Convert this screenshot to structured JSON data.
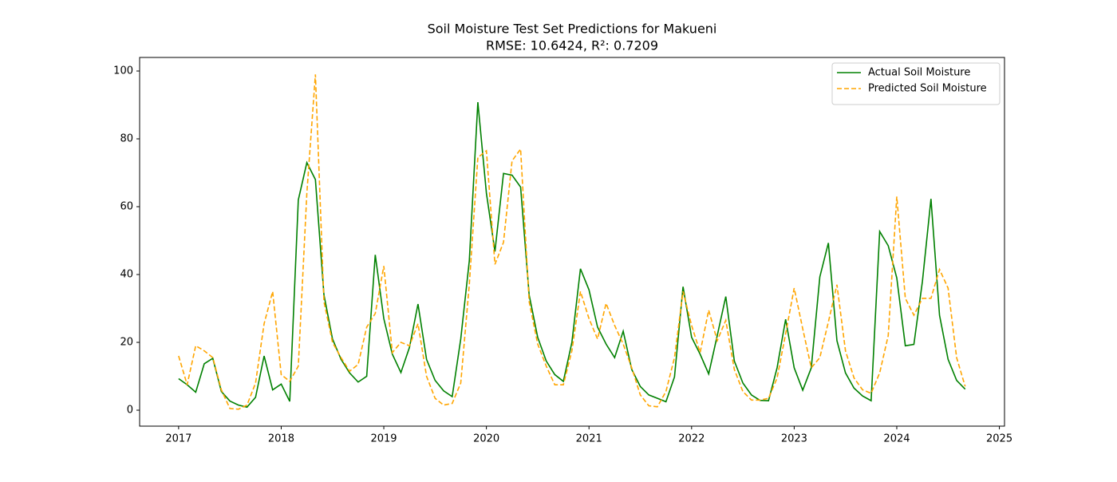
{
  "chart_data": {
    "type": "line",
    "title": "Soil Moisture Test Set Predictions for Makueni",
    "subtitle": "RMSE: 10.6424, R²: 0.7209",
    "x": [
      2017,
      2017.0833,
      2017.1667,
      2017.25,
      2017.3333,
      2017.4167,
      2017.5,
      2017.5833,
      2017.6667,
      2017.75,
      2017.8333,
      2017.9167,
      2018,
      2018.0833,
      2018.1667,
      2018.25,
      2018.3333,
      2018.4167,
      2018.5,
      2018.5833,
      2018.6667,
      2018.75,
      2018.8333,
      2018.9167,
      2019,
      2019.0833,
      2019.1667,
      2019.25,
      2019.3333,
      2019.4167,
      2019.5,
      2019.5833,
      2019.6667,
      2019.75,
      2019.8333,
      2019.9167,
      2020,
      2020.0833,
      2020.1667,
      2020.25,
      2020.3333,
      2020.4167,
      2020.5,
      2020.5833,
      2020.6667,
      2020.75,
      2020.8333,
      2020.9167,
      2021,
      2021.0833,
      2021.1667,
      2021.25,
      2021.3333,
      2021.4167,
      2021.5,
      2021.5833,
      2021.6667,
      2021.75,
      2021.8333,
      2021.9167,
      2022,
      2022.0833,
      2022.1667,
      2022.25,
      2022.3333,
      2022.4167,
      2022.5,
      2022.5833,
      2022.6667,
      2022.75,
      2022.8333,
      2022.9167,
      2023,
      2023.0833,
      2023.1667,
      2023.25,
      2023.3333,
      2023.4167,
      2023.5,
      2023.5833,
      2023.6667,
      2023.75,
      2023.8333,
      2023.9167,
      2024,
      2024.0833,
      2024.1667,
      2024.25,
      2024.3333,
      2024.4167,
      2024.5,
      2024.5833,
      2024.6667
    ],
    "series": [
      {
        "name": "Actual Soil Moisture",
        "color": "#008000",
        "linestyle": "solid",
        "values": [
          9.3,
          7.5,
          5.3,
          13.7,
          15.3,
          5.5,
          2.7,
          1.5,
          0.9,
          3.8,
          16,
          6,
          7.7,
          2.6,
          62,
          73,
          68,
          34,
          21,
          15,
          11,
          8.3,
          10,
          45.8,
          27,
          16.5,
          11.1,
          18.5,
          31.3,
          15,
          8.8,
          5.7,
          4,
          21,
          44,
          90.8,
          64,
          46.8,
          69.8,
          69.3,
          65.8,
          34,
          21.5,
          14.5,
          10.5,
          8.5,
          20,
          41.7,
          35.5,
          24.5,
          19.5,
          15.5,
          23.3,
          12,
          7,
          4.5,
          3.5,
          2.5,
          9.8,
          36.4,
          21.5,
          16.5,
          10.7,
          22,
          33.5,
          14.5,
          8,
          4.5,
          2.9,
          2.8,
          12.5,
          26.8,
          12.5,
          5.9,
          12.5,
          39.3,
          49.3,
          20.5,
          11,
          6.5,
          4.2,
          2.8,
          52.7,
          48.5,
          39,
          19,
          19.4,
          38,
          62.3,
          28,
          15,
          8.8,
          6.2
        ]
      },
      {
        "name": "Predicted Soil Moisture",
        "color": "#ffa500",
        "linestyle": "dashed",
        "values": [
          16,
          7.5,
          19,
          17.5,
          15.5,
          6,
          0.5,
          0.3,
          1.5,
          8,
          25.5,
          35,
          10.5,
          8.5,
          13,
          64,
          99,
          32,
          20,
          15.5,
          11.5,
          13.5,
          24.5,
          28.5,
          42.5,
          17,
          20,
          19,
          25.5,
          10,
          3.5,
          1.5,
          2,
          8,
          37,
          74.5,
          76.5,
          43,
          49.5,
          73.5,
          77,
          32,
          19.5,
          13,
          7.5,
          7.5,
          17.5,
          35,
          27,
          21,
          31.5,
          25,
          19.5,
          12.5,
          4.5,
          1.3,
          1,
          5.5,
          15.5,
          35,
          25,
          17,
          29.5,
          20.5,
          26.5,
          12,
          5.5,
          3,
          3,
          3.5,
          9.5,
          22.5,
          36,
          24,
          12.5,
          15.5,
          26,
          37,
          17.5,
          9.5,
          6,
          5,
          11,
          22,
          63,
          33,
          28,
          33,
          33,
          41.5,
          36,
          15.5,
          7
        ]
      }
    ],
    "xlim": [
      2016.62,
      2025.05
    ],
    "xticks": [
      2017,
      2018,
      2019,
      2020,
      2021,
      2022,
      2023,
      2024,
      2025
    ],
    "ylim": [
      -4.7,
      104
    ],
    "yticks": [
      0,
      20,
      40,
      60,
      80,
      100
    ],
    "grid": false,
    "legend": "upper-right"
  }
}
